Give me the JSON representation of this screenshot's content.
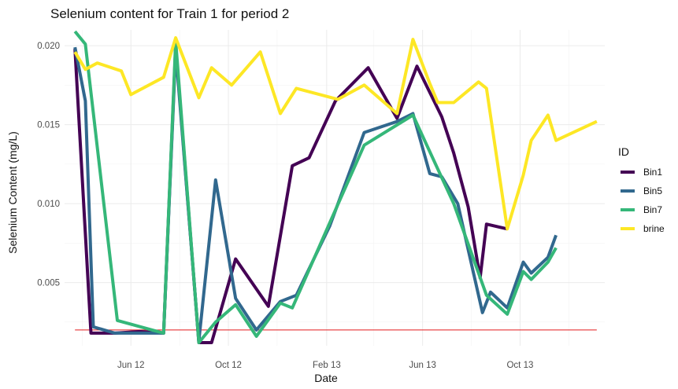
{
  "chart_data": {
    "type": "line",
    "title": "Selenium content for Train 1 for period 2",
    "xlabel": "Date",
    "ylabel": "Selenium Content (mg/L)",
    "x_ticks": [
      "Jun 12",
      "Oct 12",
      "Feb 13",
      "Jun 13",
      "Oct 13"
    ],
    "y_ticks": [
      "0.005",
      "0.010",
      "0.015",
      "0.020"
    ],
    "y_tick_values": [
      0.005,
      0.01,
      0.015,
      0.02
    ],
    "ylim": [
      0.001,
      0.021
    ],
    "xlim": [
      "2012-03-10",
      "2014-01-15"
    ],
    "grid": true,
    "legend_title": "ID",
    "legend_position": "right",
    "reference_line": {
      "y": 0.002,
      "color": "#e41a1c"
    },
    "series": [
      {
        "name": "Bin1",
        "color": "#440154",
        "points": [
          [
            "2012-03-23",
            0.0198
          ],
          [
            "2012-04-12",
            0.0018
          ],
          [
            "2012-05-12",
            0.0018
          ],
          [
            "2012-06-12",
            0.0019
          ],
          [
            "2012-07-12",
            0.0018
          ],
          [
            "2012-07-27",
            0.02
          ],
          [
            "2012-08-25",
            0.0012
          ],
          [
            "2012-09-10",
            0.0012
          ],
          [
            "2012-10-10",
            0.0065
          ],
          [
            "2012-11-20",
            0.0035
          ],
          [
            "2012-12-20",
            0.0124
          ],
          [
            "2013-01-10",
            0.0129
          ],
          [
            "2013-02-12",
            0.0165
          ],
          [
            "2013-03-25",
            0.0186
          ],
          [
            "2013-04-30",
            0.0154
          ],
          [
            "2013-05-25",
            0.0187
          ],
          [
            "2013-06-25",
            0.0155
          ],
          [
            "2013-07-10",
            0.0132
          ],
          [
            "2013-07-28",
            0.0098
          ],
          [
            "2013-08-12",
            0.0053
          ],
          [
            "2013-08-20",
            0.0087
          ],
          [
            "2013-09-15",
            0.0084
          ]
        ]
      },
      {
        "name": "Bin5",
        "color": "#31688e",
        "points": [
          [
            "2012-03-23",
            0.0199
          ],
          [
            "2012-04-05",
            0.0165
          ],
          [
            "2012-04-15",
            0.0022
          ],
          [
            "2012-05-12",
            0.0018
          ],
          [
            "2012-06-12",
            0.0018
          ],
          [
            "2012-07-12",
            0.0018
          ],
          [
            "2012-07-27",
            0.0197
          ],
          [
            "2012-08-25",
            0.0013
          ],
          [
            "2012-09-15",
            0.0115
          ],
          [
            "2012-10-10",
            0.004
          ],
          [
            "2012-11-05",
            0.002
          ],
          [
            "2012-12-05",
            0.0038
          ],
          [
            "2012-12-25",
            0.0042
          ],
          [
            "2013-02-05",
            0.0086
          ],
          [
            "2013-03-20",
            0.0145
          ],
          [
            "2013-04-30",
            0.0152
          ],
          [
            "2013-05-20",
            0.0157
          ],
          [
            "2013-06-10",
            0.0119
          ],
          [
            "2013-06-25",
            0.0117
          ],
          [
            "2013-07-15",
            0.01
          ],
          [
            "2013-08-15",
            0.0031
          ],
          [
            "2013-08-25",
            0.0044
          ],
          [
            "2013-09-15",
            0.0034
          ],
          [
            "2013-10-05",
            0.0063
          ],
          [
            "2013-10-15",
            0.0056
          ],
          [
            "2013-11-05",
            0.0066
          ],
          [
            "2013-11-15",
            0.008
          ]
        ]
      },
      {
        "name": "Bin7",
        "color": "#35b779",
        "points": [
          [
            "2012-03-23",
            0.0209
          ],
          [
            "2012-04-05",
            0.0201
          ],
          [
            "2012-05-15",
            0.0026
          ],
          [
            "2012-07-12",
            0.0018
          ],
          [
            "2012-07-27",
            0.0203
          ],
          [
            "2012-08-25",
            0.0012
          ],
          [
            "2012-09-15",
            0.0025
          ],
          [
            "2012-10-10",
            0.0036
          ],
          [
            "2012-11-05",
            0.0016
          ],
          [
            "2012-12-05",
            0.0037
          ],
          [
            "2012-12-20",
            0.0034
          ],
          [
            "2013-02-05",
            0.0088
          ],
          [
            "2013-03-20",
            0.0137
          ],
          [
            "2013-05-20",
            0.0156
          ],
          [
            "2013-07-10",
            0.01
          ],
          [
            "2013-08-20",
            0.0042
          ],
          [
            "2013-09-15",
            0.003
          ],
          [
            "2013-10-05",
            0.0057
          ],
          [
            "2013-10-15",
            0.0052
          ],
          [
            "2013-11-05",
            0.0063
          ],
          [
            "2013-11-15",
            0.0072
          ]
        ]
      },
      {
        "name": "brine",
        "color": "#fde725",
        "points": [
          [
            "2012-03-23",
            0.0196
          ],
          [
            "2012-04-05",
            0.0185
          ],
          [
            "2012-04-20",
            0.0189
          ],
          [
            "2012-05-20",
            0.0184
          ],
          [
            "2012-06-01",
            0.0169
          ],
          [
            "2012-07-12",
            0.018
          ],
          [
            "2012-07-27",
            0.0205
          ],
          [
            "2012-08-25",
            0.0167
          ],
          [
            "2012-09-10",
            0.0186
          ],
          [
            "2012-10-05",
            0.0175
          ],
          [
            "2012-11-10",
            0.0196
          ],
          [
            "2012-12-05",
            0.0157
          ],
          [
            "2012-12-25",
            0.0173
          ],
          [
            "2013-02-15",
            0.0166
          ],
          [
            "2013-03-20",
            0.0175
          ],
          [
            "2013-04-30",
            0.0157
          ],
          [
            "2013-05-20",
            0.0204
          ],
          [
            "2013-06-10",
            0.0176
          ],
          [
            "2013-06-20",
            0.0164
          ],
          [
            "2013-07-10",
            0.0164
          ],
          [
            "2013-08-10",
            0.0177
          ],
          [
            "2013-08-20",
            0.0173
          ],
          [
            "2013-09-15",
            0.0084
          ],
          [
            "2013-10-05",
            0.0118
          ],
          [
            "2013-10-15",
            0.014
          ],
          [
            "2013-11-05",
            0.0156
          ],
          [
            "2013-11-15",
            0.014
          ],
          [
            "2014-01-05",
            0.0152
          ]
        ]
      }
    ]
  }
}
